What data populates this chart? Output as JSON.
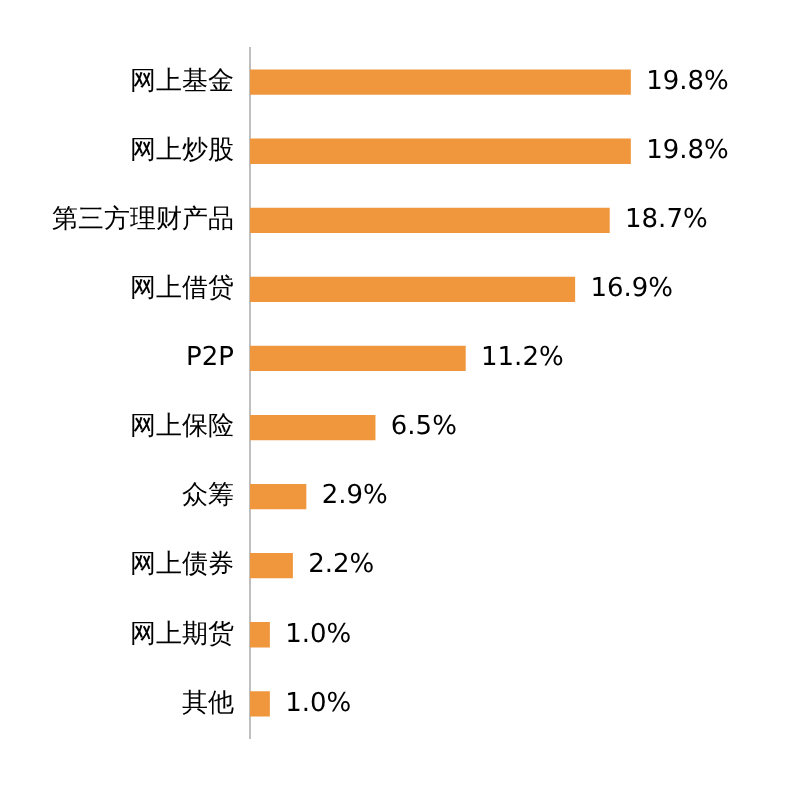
{
  "chart_data": {
    "type": "bar",
    "orientation": "horizontal",
    "categories": [
      "网上基金",
      "网上炒股",
      "第三方理财产品",
      "网上借贷",
      "P2P",
      "网上保险",
      "众筹",
      "网上债券",
      "网上期货",
      "其他"
    ],
    "values": [
      19.8,
      19.8,
      18.7,
      16.9,
      11.2,
      6.5,
      2.9,
      2.2,
      1.0,
      1.0
    ],
    "value_labels": [
      "19.8%",
      "19.8%",
      "18.7%",
      "16.9%",
      "11.2%",
      "6.5%",
      "2.9%",
      "2.2%",
      "1.0%",
      "1.0%"
    ],
    "color": "#f0963c"
  }
}
